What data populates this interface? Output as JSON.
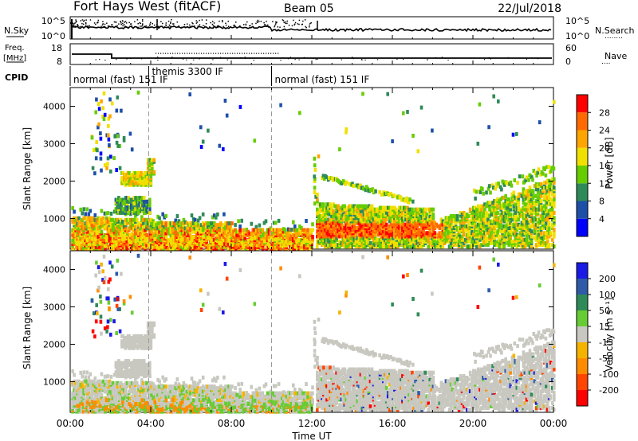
{
  "header": {
    "station": "Fort Hays West (fitACF)",
    "beam": "Beam 05",
    "date": "22/Jul/2018"
  },
  "panels": {
    "nsky": {
      "label": "N.Sky",
      "tick_top": "10^5",
      "tick_bottom": "10^0",
      "right_label": "N.Search",
      "right_dots": "........"
    },
    "freq": {
      "label1": "Freq.",
      "label2": "[MHz]",
      "tick_top": "18",
      "tick_bottom": "8",
      "right_tick_top": "60",
      "right_tick_bottom": "0",
      "right_label": "Nave",
      "right_dots": "...."
    },
    "cpid": {
      "label": "CPID",
      "segments": [
        {
          "name": "normal (fast) 151 IF",
          "start_hour": 0,
          "end_hour": 3.9
        },
        {
          "name": "themis 3300 IF",
          "start_hour": 3.9,
          "end_hour": 10
        },
        {
          "name": "normal (fast) 151 IF",
          "start_hour": 10,
          "end_hour": 24
        }
      ]
    }
  },
  "colors": {
    "power": [
      "#0000ff",
      "#1e4fa8",
      "#2e8b57",
      "#66cd00",
      "#f0e000",
      "#ffa500",
      "#ff6a00",
      "#ff0000"
    ],
    "velocity": [
      "#1a1ae6",
      "#2e5aa8",
      "#2e8b57",
      "#66cc33",
      "#c8c8c0",
      "#f5b300",
      "#ff8c00",
      "#ff4500",
      "#ff0000"
    ]
  },
  "chart_data": [
    {
      "type": "heatmap",
      "variable": "power",
      "ylabel": "Slant Range [km]",
      "xlabel": "",
      "xlim": [
        0,
        24
      ],
      "ylim": [
        180,
        4500
      ],
      "yticks": [
        "1000",
        "2000",
        "3000",
        "4000"
      ],
      "colorbar": {
        "label": "Power [dB]",
        "ticks": [
          "4",
          "8",
          "12",
          "16",
          "20",
          "24",
          "28"
        ],
        "range": [
          0,
          32
        ]
      }
    },
    {
      "type": "heatmap",
      "variable": "velocity",
      "ylabel": "Slant Range [km]",
      "xlabel": "Time UT",
      "xlim": [
        0,
        24
      ],
      "ylim": [
        180,
        4500
      ],
      "xticks": [
        "00:00",
        "04:00",
        "08:00",
        "12:00",
        "16:00",
        "20:00",
        "00:00"
      ],
      "yticks": [
        "1000",
        "2000",
        "3000",
        "4000"
      ],
      "colorbar": {
        "label": "Velocity [m s⁻¹]",
        "ticks": [
          "200",
          "100",
          "50",
          "15",
          "-15",
          "-50",
          "-100",
          "-200"
        ]
      }
    }
  ]
}
